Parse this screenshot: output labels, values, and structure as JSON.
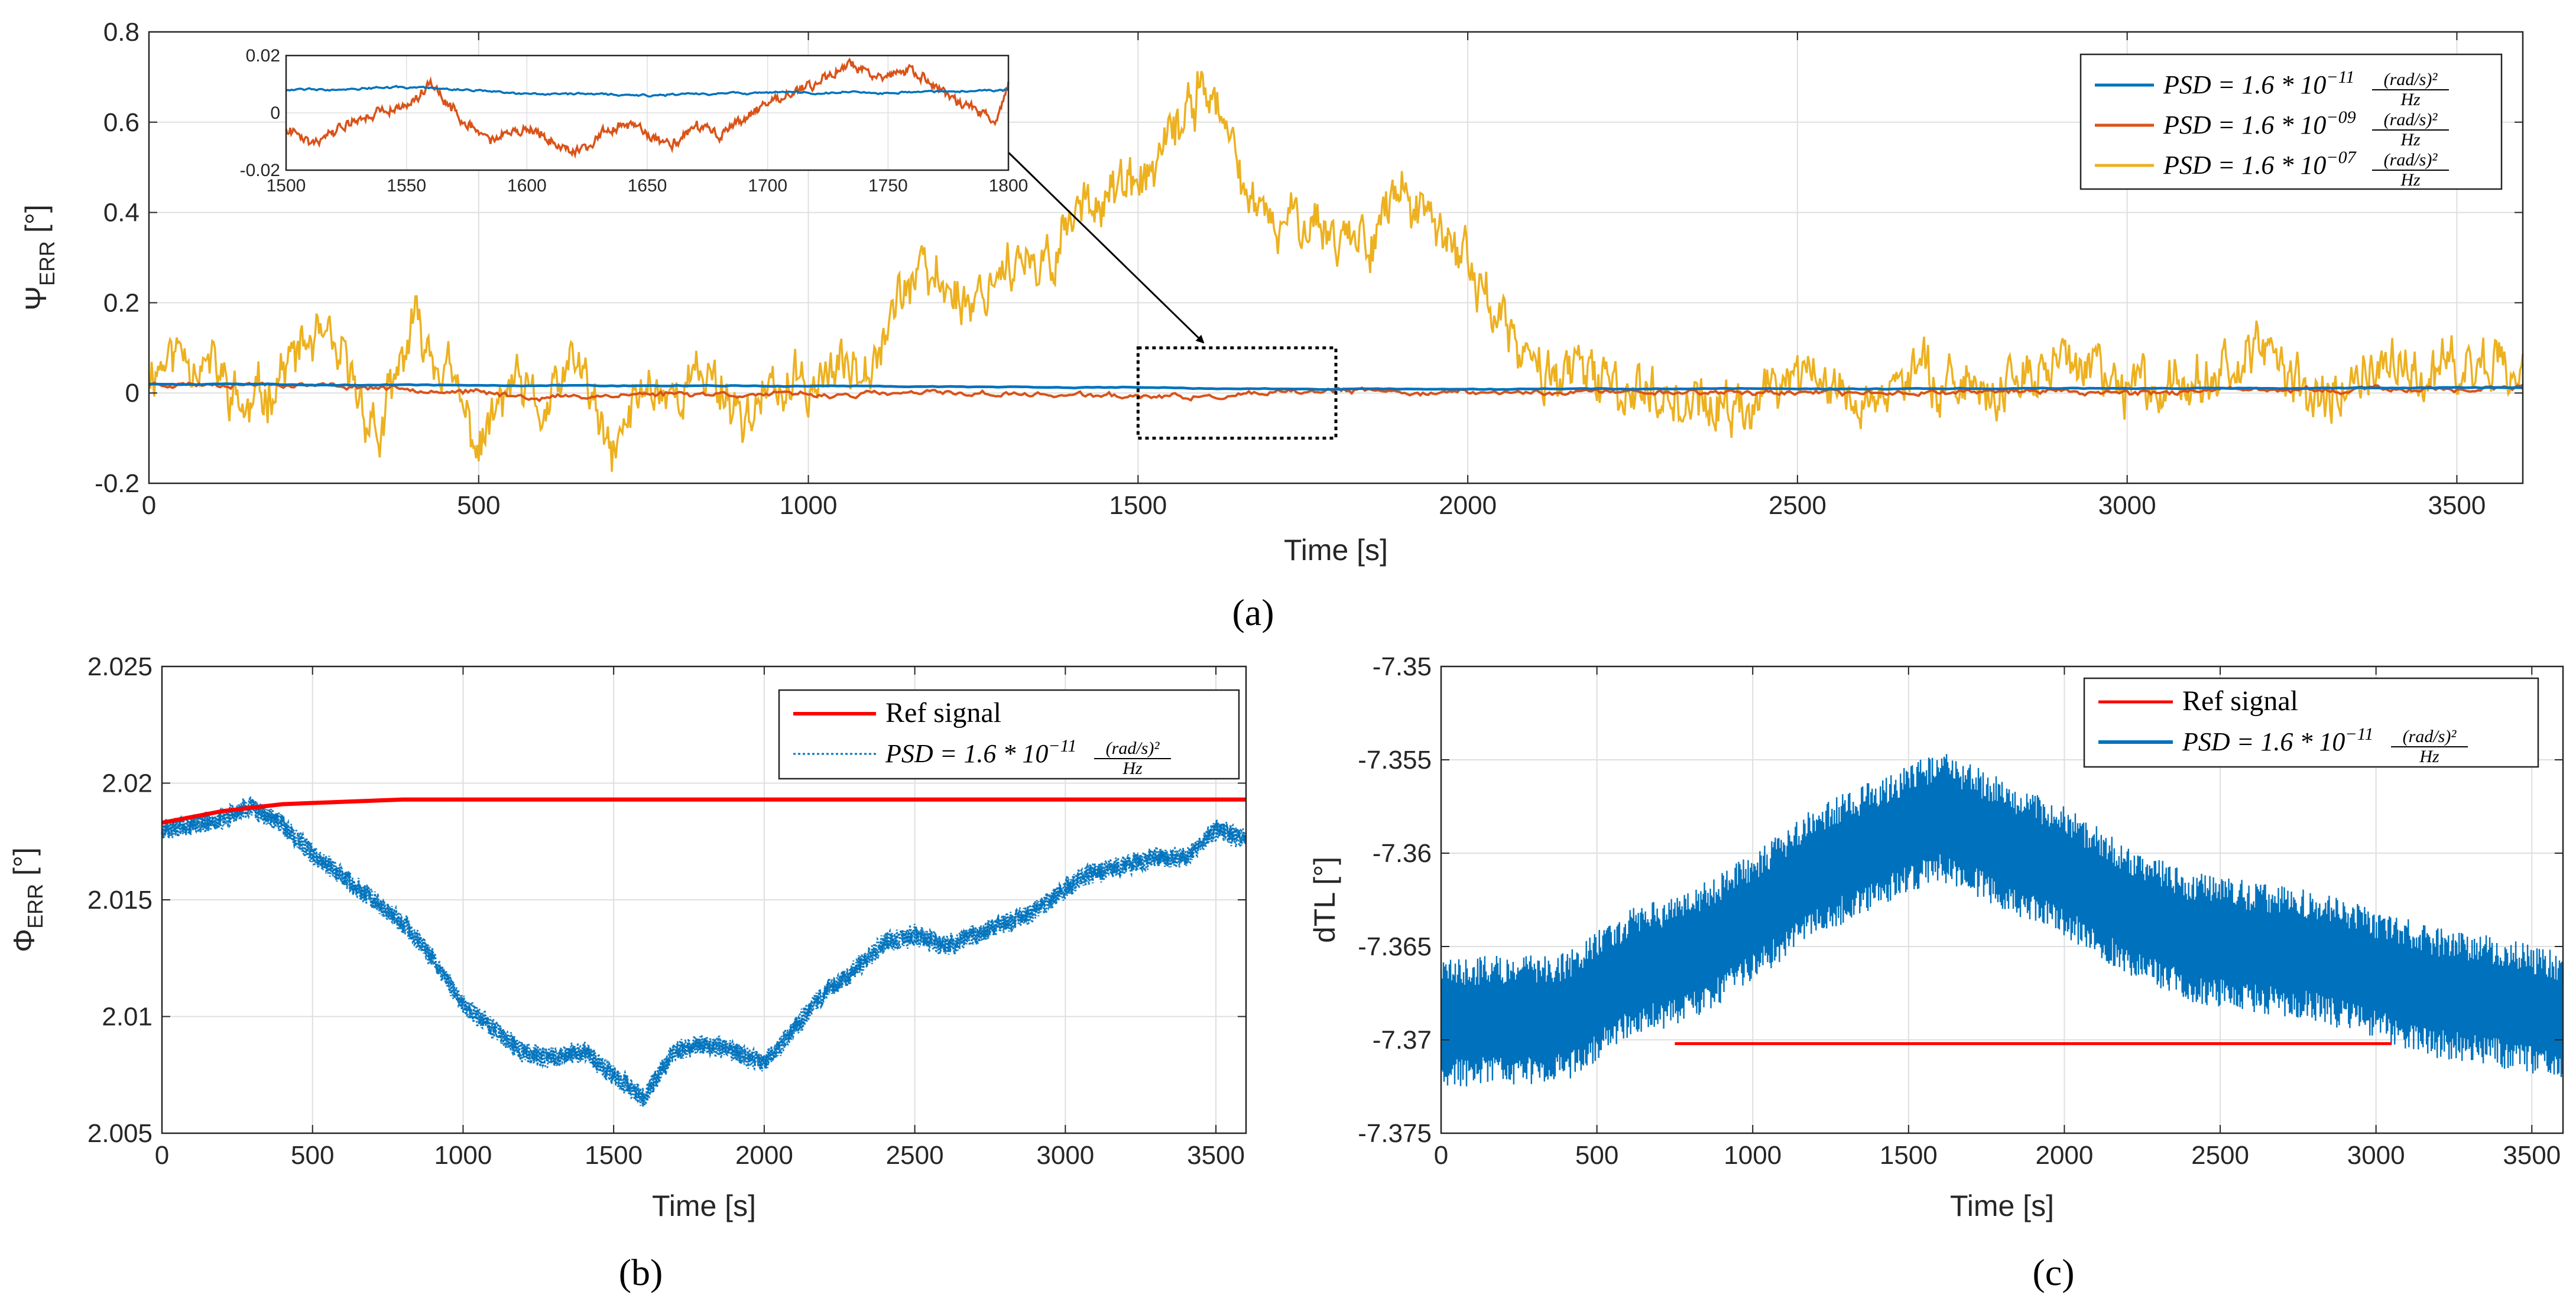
{
  "colors": {
    "blue": "#0072BD",
    "orange": "#D95319",
    "yellow": "#EDB120",
    "red": "#FF0000",
    "grid": "#DFDFDF",
    "axis": "#262626"
  },
  "chart_data": [
    {
      "id": "a",
      "type": "line",
      "panel_label": "(a)",
      "xlabel": "Time [s]",
      "ylabel_main": "Ψ",
      "ylabel_sub": "ERR",
      "ylabel_unit": " [°]",
      "xlim": [
        0,
        3600
      ],
      "ylim": [
        -0.2,
        0.8
      ],
      "xticks": [
        0,
        500,
        1000,
        1500,
        2000,
        2500,
        3000,
        3500
      ],
      "yticks": [
        -0.2,
        0,
        0.2,
        0.4,
        0.6,
        0.8
      ],
      "ytick_labels": [
        "-0.2",
        "0",
        "0.2",
        "0.4",
        "0.6",
        "0.8"
      ],
      "grid": true,
      "legend_position": "top-right",
      "series": [
        {
          "name": "PSD = 1.6 * 10^-11 (rad/s)^2/Hz",
          "legend_prefix": "PSD = 1.6 * 10",
          "legend_exp": "−11",
          "legend_num": "(rad/s)²",
          "legend_den": "Hz",
          "color": "blue",
          "x": [
            0,
            400,
            800,
            1200,
            1600,
            2000,
            2400,
            2800,
            3200,
            3600
          ],
          "y": [
            0.02,
            0.018,
            0.016,
            0.015,
            0.01,
            0.008,
            0.009,
            0.01,
            0.011,
            0.012
          ]
        },
        {
          "name": "PSD = 1.6 * 10^-09 (rad/s)^2/Hz",
          "legend_prefix": "PSD = 1.6 * 10",
          "legend_exp": "−09",
          "legend_num": "(rad/s)²",
          "legend_den": "Hz",
          "color": "orange",
          "x": [
            0,
            200,
            400,
            600,
            800,
            1000,
            1200,
            1400,
            1600,
            1800,
            2000,
            2200,
            2400,
            2600,
            2800,
            3000,
            3200,
            3400,
            3600
          ],
          "y": [
            0.02,
            0.02,
            0.01,
            -0.01,
            0,
            -0.005,
            0,
            -0.005,
            -0.01,
            0.005,
            0,
            0.003,
            0.002,
            0,
            0.005,
            0.002,
            0.005,
            0.008,
            0.01
          ]
        },
        {
          "name": "PSD = 1.6 * 10^-07 (rad/s)^2/Hz",
          "legend_prefix": "PSD = 1.6 * 10",
          "legend_exp": "−07",
          "legend_num": "(rad/s)²",
          "legend_den": "Hz",
          "color": "yellow",
          "x": [
            0,
            50,
            100,
            150,
            200,
            250,
            300,
            350,
            400,
            450,
            500,
            550,
            600,
            650,
            700,
            750,
            800,
            850,
            900,
            950,
            1000,
            1050,
            1100,
            1150,
            1200,
            1250,
            1300,
            1350,
            1400,
            1450,
            1500,
            1550,
            1600,
            1650,
            1700,
            1750,
            1800,
            1850,
            1900,
            1950,
            2000,
            2050,
            2100,
            2150,
            2200,
            2300,
            2400,
            2500,
            2600,
            2700,
            2800,
            2900,
            3000,
            3100,
            3200,
            3300,
            3400,
            3500,
            3600
          ],
          "y": [
            0.05,
            0.1,
            0.05,
            -0.05,
            0.05,
            0.12,
            0.05,
            -0.1,
            0.15,
            0.05,
            -0.12,
            0.02,
            -0.05,
            0.08,
            -0.15,
            0.02,
            0,
            0.05,
            -0.05,
            0,
            0.02,
            0.05,
            0.1,
            0.25,
            0.25,
            0.2,
            0.3,
            0.25,
            0.4,
            0.45,
            0.45,
            0.55,
            0.7,
            0.5,
            0.35,
            0.4,
            0.35,
            0.35,
            0.45,
            0.35,
            0.3,
            0.15,
            0.05,
            0.05,
            0.02,
            0,
            -0.05,
            0.05,
            -0.02,
            0.05,
            0,
            0.08,
            0,
            0.05,
            0.08,
            0,
            0.05,
            0.05,
            0.1
          ]
        }
      ],
      "annotation": {
        "rect_x": [
          1500,
          1800
        ],
        "rect_y": [
          -0.1,
          0.1
        ],
        "arrow_text": ""
      },
      "inset": {
        "xlim": [
          1500,
          1800
        ],
        "ylim": [
          -0.02,
          0.02
        ],
        "xticks": [
          1500,
          1550,
          1600,
          1650,
          1700,
          1750,
          1800
        ],
        "yticks": [
          -0.02,
          0,
          0.02
        ],
        "ytick_labels": [
          "-0.02",
          "0",
          "0.02"
        ],
        "blue": {
          "x": [
            1500,
            1550,
            1600,
            1650,
            1700,
            1750,
            1800
          ],
          "y": [
            0.008,
            0.009,
            0.007,
            0.006,
            0.007,
            0.007,
            0.008
          ]
        },
        "orange": {
          "x": [
            1500,
            1510,
            1530,
            1550,
            1560,
            1570,
            1585,
            1600,
            1620,
            1640,
            1660,
            1670,
            1680,
            1700,
            1720,
            1735,
            1745,
            1760,
            1780,
            1795,
            1800
          ],
          "y": [
            -0.005,
            -0.01,
            -0.002,
            0.003,
            0.01,
            0.0,
            -0.01,
            -0.005,
            -0.014,
            -0.003,
            -0.012,
            -0.004,
            -0.008,
            0.004,
            0.01,
            0.018,
            0.012,
            0.015,
            0.003,
            -0.002,
            0.01
          ]
        }
      }
    },
    {
      "id": "b",
      "type": "line",
      "panel_label": "(b)",
      "xlabel": "Time [s]",
      "ylabel_main": "Φ",
      "ylabel_sub": "ERR",
      "ylabel_unit": " [°]",
      "xlim": [
        0,
        3600
      ],
      "ylim": [
        2.005,
        2.025
      ],
      "xticks": [
        0,
        500,
        1000,
        1500,
        2000,
        2500,
        3000,
        3500
      ],
      "yticks": [
        2.005,
        2.01,
        2.015,
        2.02,
        2.025
      ],
      "ytick_labels": [
        "2.005",
        "2.01",
        "2.015",
        "2.02",
        "2.025"
      ],
      "grid": true,
      "legend_position": "top-right",
      "series": [
        {
          "name": "Ref signal",
          "legend_label": "Ref signal",
          "color": "red",
          "style": "solid",
          "x": [
            0,
            200,
            400,
            600,
            800,
            1000,
            2000,
            3000,
            3600
          ],
          "y": [
            2.0183,
            2.0188,
            2.0191,
            2.0192,
            2.0193,
            2.0193,
            2.0193,
            2.0193,
            2.0193
          ]
        },
        {
          "name": "PSD = 1.6 * 10^-11 (rad/s)^2/Hz",
          "legend_prefix": "PSD = 1.6 * 10",
          "legend_exp": "−11",
          "legend_num": "(rad/s)²",
          "legend_den": "Hz",
          "color": "blue",
          "style": "dotted",
          "x": [
            0,
            100,
            200,
            300,
            400,
            500,
            600,
            700,
            800,
            900,
            1000,
            1100,
            1200,
            1300,
            1400,
            1500,
            1600,
            1700,
            1800,
            1900,
            2000,
            2100,
            2200,
            2300,
            2400,
            2500,
            2600,
            2700,
            2800,
            2900,
            3000,
            3100,
            3200,
            3300,
            3400,
            3500,
            3600
          ],
          "y": [
            2.018,
            2.0182,
            2.0185,
            2.019,
            2.0182,
            2.017,
            2.016,
            2.015,
            2.014,
            2.0125,
            2.0105,
            2.0095,
            2.0085,
            2.0082,
            2.0085,
            2.0075,
            2.0065,
            2.0085,
            2.0088,
            2.0085,
            2.008,
            2.0095,
            2.011,
            2.012,
            2.0132,
            2.0135,
            2.013,
            2.0135,
            2.014,
            2.0145,
            2.0155,
            2.0162,
            2.0165,
            2.0168,
            2.0168,
            2.018,
            2.0176
          ]
        }
      ]
    },
    {
      "id": "c",
      "type": "line",
      "panel_label": "(c)",
      "xlabel": "Time [s]",
      "ylabel": "dTL [°]",
      "xlim": [
        0,
        3600
      ],
      "ylim": [
        -7.375,
        -7.35
      ],
      "xticks": [
        0,
        500,
        1000,
        1500,
        2000,
        2500,
        3000,
        3500
      ],
      "yticks": [
        -7.375,
        -7.37,
        -7.365,
        -7.36,
        -7.355,
        -7.35
      ],
      "ytick_labels": [
        "-7.375",
        "-7.37",
        "-7.365",
        "-7.36",
        "-7.355",
        "-7.35"
      ],
      "grid": true,
      "legend_position": "top-right",
      "series": [
        {
          "name": "Ref signal",
          "legend_label": "Ref signal",
          "color": "red",
          "x": [
            750,
            3050
          ],
          "y": [
            -7.3702,
            -7.3702
          ]
        },
        {
          "name": "PSD = 1.6 * 10^-11 (rad/s)^2/Hz",
          "legend_prefix": "PSD = 1.6 * 10",
          "legend_exp": "−11",
          "legend_num": "(rad/s)²",
          "legend_den": "Hz",
          "color": "blue",
          "x": [
            0,
            200,
            400,
            600,
            800,
            1000,
            1200,
            1400,
            1600,
            1800,
            2000,
            2200,
            2400,
            2600,
            2800,
            3000,
            3200,
            3400,
            3600
          ],
          "y": [
            -7.369,
            -7.369,
            -7.3688,
            -7.3665,
            -7.3655,
            -7.3635,
            -7.361,
            -7.3595,
            -7.358,
            -7.3595,
            -7.361,
            -7.363,
            -7.3645,
            -7.365,
            -7.3655,
            -7.3665,
            -7.3675,
            -7.368,
            -7.3688
          ],
          "band_half_width": 0.0035
        }
      ]
    }
  ]
}
